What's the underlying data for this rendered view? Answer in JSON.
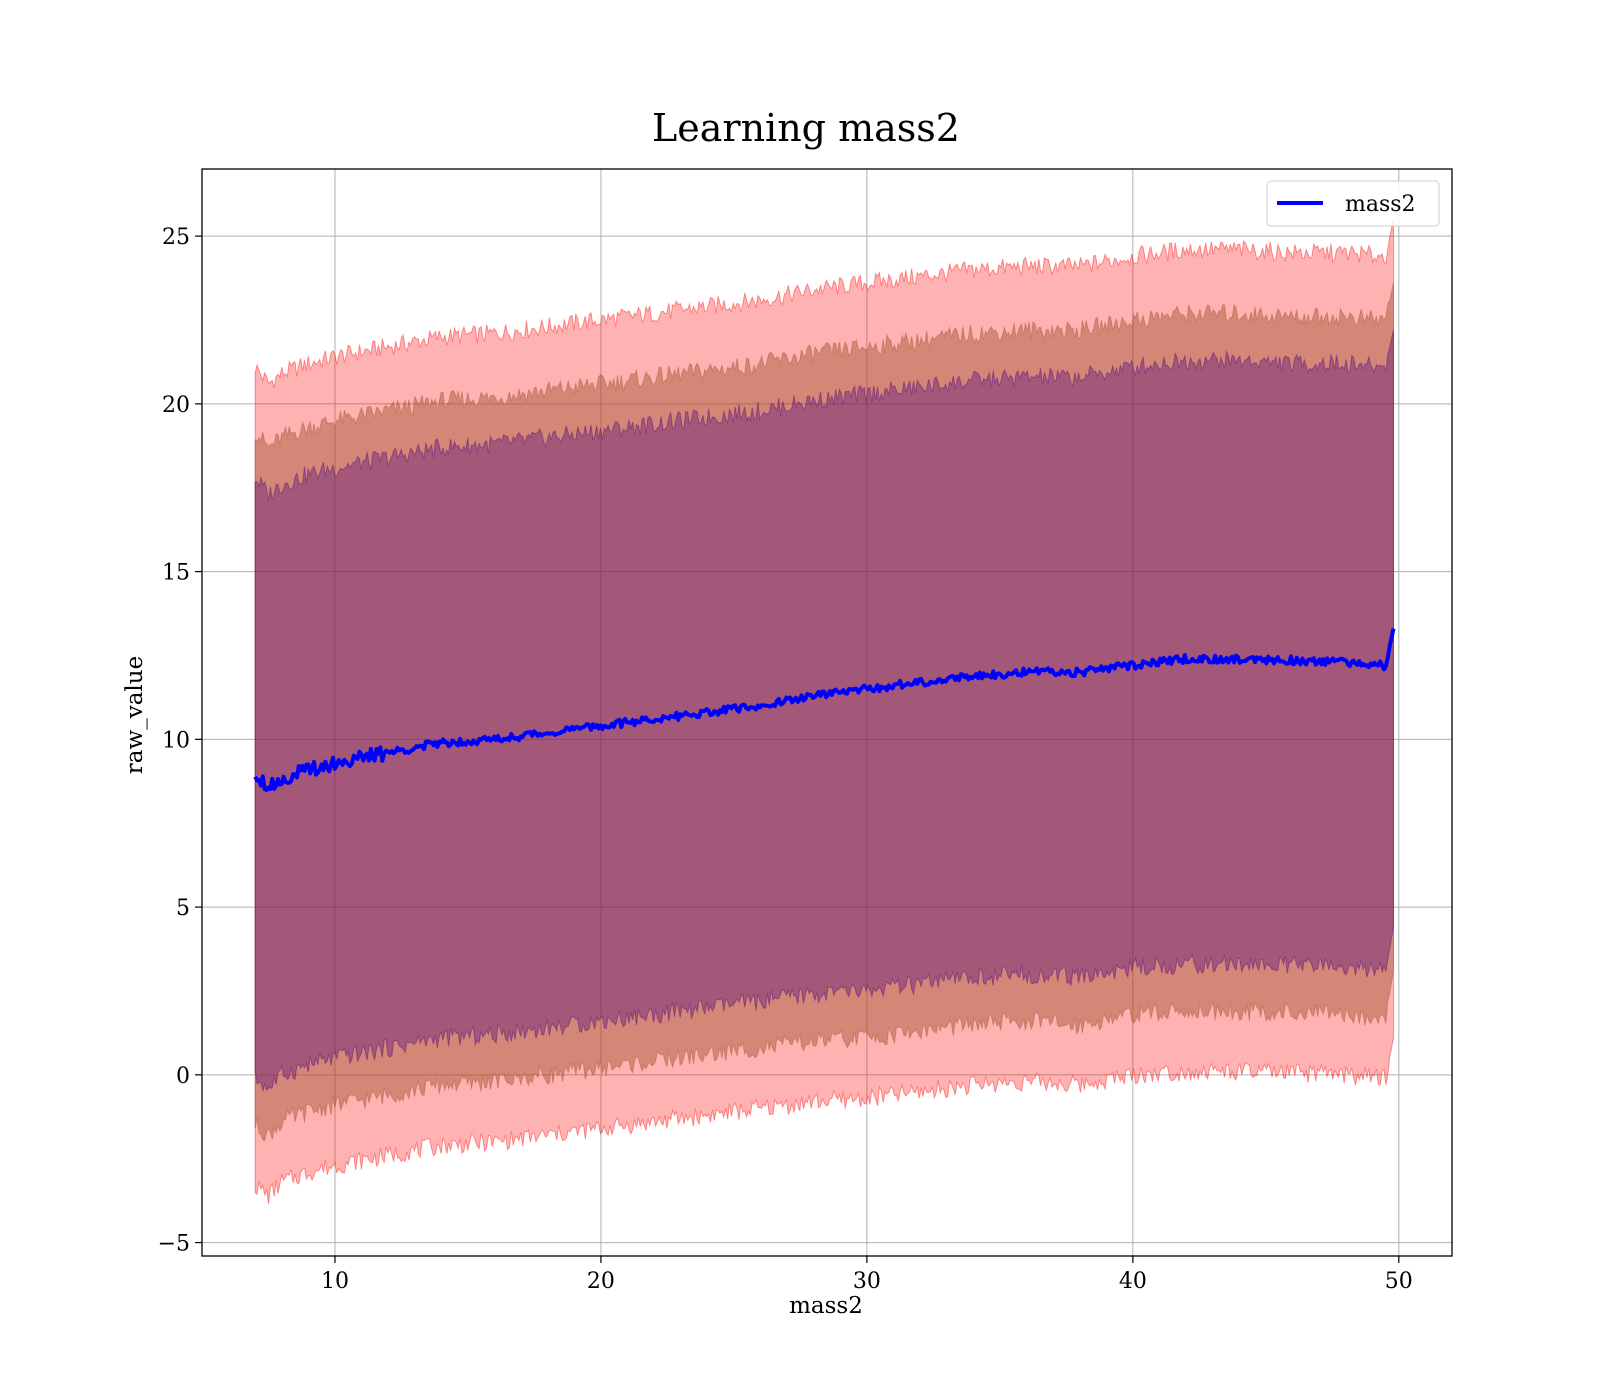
{
  "chart_data": {
    "type": "line",
    "title": "Learning mass2",
    "xlabel": "mass2",
    "ylabel": "raw_value",
    "xlim": [
      5,
      52
    ],
    "ylim": [
      -5.4,
      27
    ],
    "xticks": [
      10,
      20,
      30,
      40,
      50
    ],
    "xtick_labels": [
      "10",
      "20",
      "30",
      "40",
      "50"
    ],
    "yticks": [
      -5,
      0,
      5,
      10,
      15,
      20,
      25
    ],
    "ytick_labels": [
      "−5",
      "0",
      "5",
      "10",
      "15",
      "20",
      "25"
    ],
    "grid": true,
    "legend": {
      "position": "top-right",
      "entries": [
        "mass2"
      ]
    },
    "colors": {
      "line": "#0000ff",
      "band_outer": "#ff0000",
      "band_middle": "#a0522d",
      "band_inner": "#4b0082",
      "grid": "#b0b0b0"
    },
    "series": [
      {
        "name": "mass2",
        "x": [
          7,
          7.5,
          8,
          9,
          10,
          12,
          14,
          16,
          18,
          20,
          22,
          24,
          26,
          28,
          30,
          32,
          34,
          36,
          38,
          40,
          42,
          44,
          46,
          48,
          49.5,
          49.8
        ],
        "y": [
          9.0,
          8.6,
          8.8,
          9.1,
          9.3,
          9.6,
          9.9,
          10.0,
          10.2,
          10.4,
          10.6,
          10.8,
          11.0,
          11.3,
          11.5,
          11.7,
          11.9,
          12.0,
          12.0,
          12.2,
          12.4,
          12.4,
          12.35,
          12.3,
          12.2,
          13.3
        ]
      }
    ],
    "bands": [
      {
        "x": [
          7,
          7.5,
          8,
          9,
          10,
          12,
          14,
          16,
          18,
          20,
          22,
          24,
          26,
          28,
          30,
          32,
          34,
          36,
          38,
          40,
          42,
          44,
          46,
          48,
          49.5,
          49.8
        ],
        "lower": [
          -3.3,
          -3.6,
          -3.2,
          -2.9,
          -2.7,
          -2.4,
          -2.1,
          -2.0,
          -1.8,
          -1.6,
          -1.4,
          -1.2,
          -1.0,
          -0.8,
          -0.7,
          -0.5,
          -0.3,
          -0.2,
          -0.3,
          0.0,
          0.1,
          0.1,
          0.05,
          0.0,
          -0.1,
          1.1
        ],
        "upper": [
          21.1,
          20.6,
          20.9,
          21.2,
          21.4,
          21.7,
          22.0,
          22.1,
          22.3,
          22.5,
          22.7,
          22.9,
          23.1,
          23.4,
          23.6,
          23.8,
          24.0,
          24.1,
          24.1,
          24.4,
          24.6,
          24.6,
          24.5,
          24.5,
          24.4,
          25.5
        ]
      },
      {
        "x": [
          7,
          7.5,
          8,
          9,
          10,
          12,
          14,
          16,
          18,
          20,
          22,
          24,
          26,
          28,
          30,
          32,
          34,
          36,
          38,
          40,
          42,
          44,
          46,
          48,
          49.5,
          49.8
        ],
        "lower": [
          -1.5,
          -1.8,
          -1.4,
          -1.1,
          -0.9,
          -0.6,
          -0.3,
          -0.2,
          0.0,
          0.2,
          0.4,
          0.6,
          0.8,
          1.0,
          1.1,
          1.3,
          1.5,
          1.6,
          1.5,
          1.8,
          1.9,
          1.9,
          1.85,
          1.8,
          1.7,
          3.1
        ],
        "upper": [
          19.2,
          18.7,
          19.0,
          19.3,
          19.5,
          19.8,
          20.1,
          20.2,
          20.4,
          20.6,
          20.8,
          21.0,
          21.2,
          21.5,
          21.7,
          21.9,
          22.1,
          22.2,
          22.2,
          22.5,
          22.7,
          22.7,
          22.6,
          22.6,
          22.5,
          23.6
        ]
      },
      {
        "x": [
          7,
          7.5,
          8,
          9,
          10,
          12,
          14,
          16,
          18,
          20,
          22,
          24,
          26,
          28,
          30,
          32,
          34,
          36,
          38,
          40,
          42,
          44,
          46,
          48,
          49.5,
          49.8
        ],
        "lower": [
          -0.1,
          -0.4,
          0.0,
          0.3,
          0.5,
          0.8,
          1.1,
          1.2,
          1.4,
          1.6,
          1.8,
          2.0,
          2.2,
          2.4,
          2.5,
          2.7,
          2.9,
          3.0,
          2.9,
          3.2,
          3.3,
          3.3,
          3.25,
          3.2,
          3.1,
          4.4
        ],
        "upper": [
          17.8,
          17.3,
          17.6,
          17.9,
          18.1,
          18.4,
          18.7,
          18.8,
          19.0,
          19.2,
          19.4,
          19.6,
          19.8,
          20.1,
          20.3,
          20.5,
          20.7,
          20.8,
          20.8,
          21.1,
          21.3,
          21.3,
          21.2,
          21.2,
          21.1,
          22.2
        ]
      }
    ]
  }
}
